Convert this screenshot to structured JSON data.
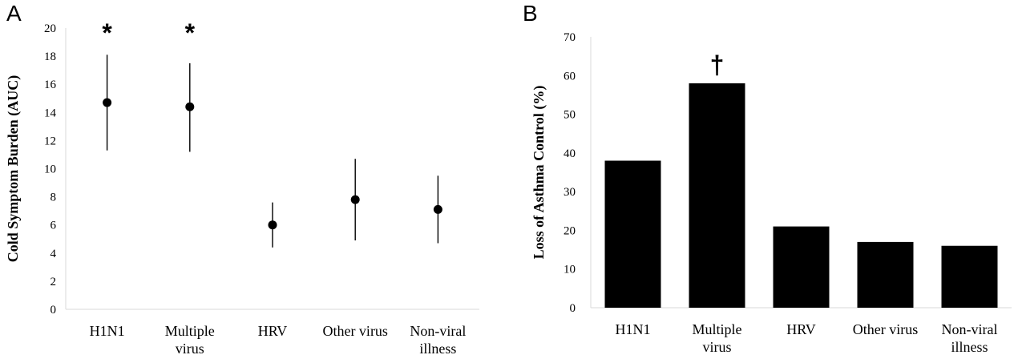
{
  "chart_data": [
    {
      "type": "scatter",
      "panel_label": "A",
      "ylabel": "Cold Symptom Burden (AUC)",
      "xlabel": "",
      "ylim": [
        0,
        20
      ],
      "yticks": [
        0,
        2,
        4,
        6,
        8,
        10,
        12,
        14,
        16,
        18,
        20
      ],
      "categories": [
        [
          "H1N1"
        ],
        [
          "Multiple",
          "virus"
        ],
        [
          "HRV"
        ],
        [
          "Other virus"
        ],
        [
          "Non-viral",
          "illness"
        ]
      ],
      "values": [
        14.7,
        14.4,
        6.0,
        7.8,
        7.1
      ],
      "error_low": [
        11.3,
        11.2,
        4.4,
        4.9,
        4.7
      ],
      "error_high": [
        18.1,
        17.5,
        7.6,
        10.7,
        9.5
      ],
      "significance": [
        "*",
        "*",
        "",
        "",
        ""
      ],
      "grid": false,
      "color": "#000000"
    },
    {
      "type": "bar",
      "panel_label": "B",
      "ylabel": "Loss of Asthma Control (%)",
      "xlabel": "",
      "ylim": [
        0,
        70
      ],
      "yticks": [
        0,
        10,
        20,
        30,
        40,
        50,
        60,
        70
      ],
      "categories": [
        [
          "H1N1"
        ],
        [
          "Multiple",
          "virus"
        ],
        [
          "HRV"
        ],
        [
          "Other virus"
        ],
        [
          "Non-viral",
          "illness"
        ]
      ],
      "values": [
        38,
        58,
        21,
        17,
        16
      ],
      "significance": [
        "",
        "†",
        "",
        "",
        ""
      ],
      "grid": false,
      "color": "#000000"
    }
  ]
}
